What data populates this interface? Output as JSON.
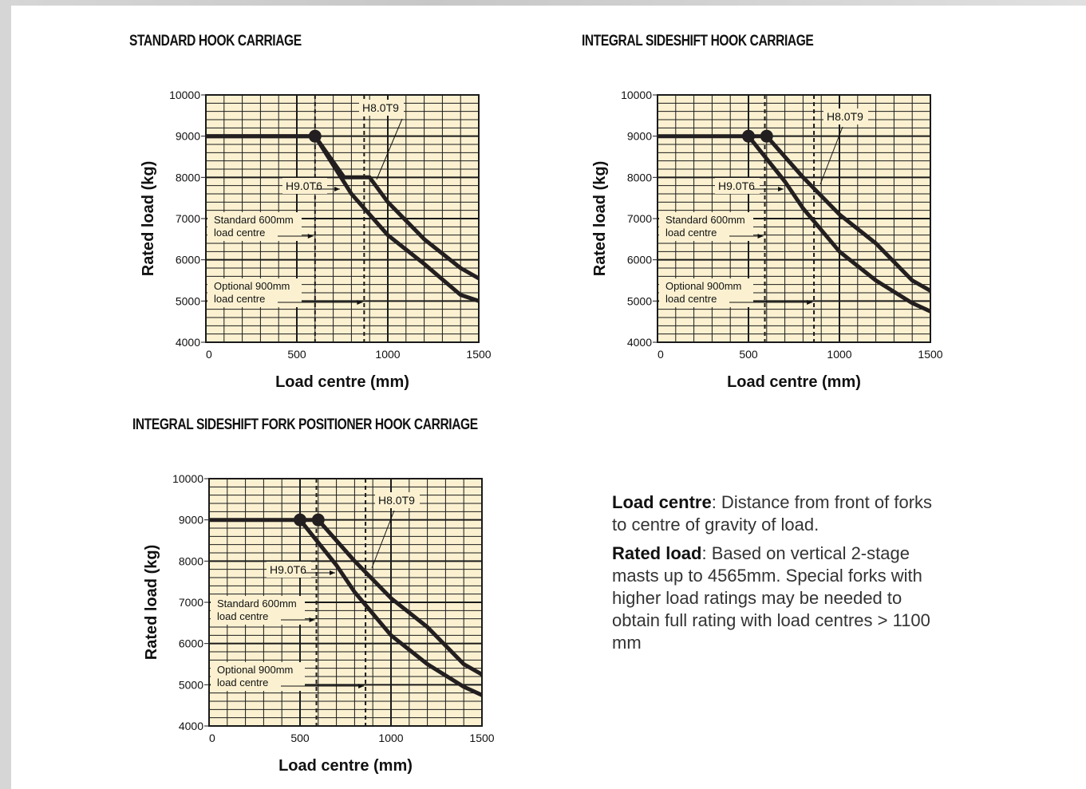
{
  "chart_data": [
    {
      "type": "line",
      "title": "STANDARD HOOK CARRIAGE",
      "xlabel": "Load centre (mm)",
      "ylabel": "Rated load (kg)",
      "xlim": [
        0,
        1500
      ],
      "ylim": [
        4000,
        10000
      ],
      "xticks": [
        0,
        500,
        1000,
        1500
      ],
      "yticks": [
        4000,
        5000,
        6000,
        7000,
        8000,
        9000,
        10000
      ],
      "grid": true,
      "reference_lines": [
        {
          "x": 600,
          "label": "Standard 600mm\nload centre"
        },
        {
          "x": 870,
          "label": "Optional 900mm\nload centre"
        }
      ],
      "series": [
        {
          "name": "H8.0T9",
          "points": [
            [
              0,
              9000
            ],
            [
              600,
              9000
            ],
            [
              760,
              8000
            ],
            [
              900,
              8000
            ],
            [
              1000,
              7400
            ],
            [
              1200,
              6500
            ],
            [
              1400,
              5800
            ],
            [
              1500,
              5550
            ]
          ]
        },
        {
          "name": "H9.0T6",
          "points": [
            [
              0,
              9000
            ],
            [
              600,
              9000
            ],
            [
              800,
              7600
            ],
            [
              1000,
              6600
            ],
            [
              1200,
              5900
            ],
            [
              1400,
              5150
            ],
            [
              1500,
              5000
            ]
          ]
        }
      ],
      "markers": [
        [
          600,
          9000
        ]
      ]
    },
    {
      "type": "line",
      "title": "INTEGRAL SIDESHIFT HOOK CARRIAGE",
      "xlabel": "Load centre (mm)",
      "ylabel": "Rated load (kg)",
      "xlim": [
        0,
        1500
      ],
      "ylim": [
        4000,
        10000
      ],
      "xticks": [
        0,
        500,
        1000,
        1500
      ],
      "yticks": [
        4000,
        5000,
        6000,
        7000,
        8000,
        9000,
        10000
      ],
      "grid": true,
      "reference_lines": [
        {
          "x": 590,
          "label": "Standard 600mm\nload centre"
        },
        {
          "x": 860,
          "label": "Optional 900mm\nload centre"
        }
      ],
      "series": [
        {
          "name": "H8.0T9",
          "points": [
            [
              0,
              9000
            ],
            [
              600,
              9000
            ],
            [
              800,
              8000
            ],
            [
              1000,
              7100
            ],
            [
              1200,
              6400
            ],
            [
              1400,
              5500
            ],
            [
              1500,
              5250
            ]
          ]
        },
        {
          "name": "H9.0T6",
          "points": [
            [
              500,
              9000
            ],
            [
              700,
              7900
            ],
            [
              800,
              7250
            ],
            [
              1000,
              6200
            ],
            [
              1200,
              5500
            ],
            [
              1400,
              4950
            ],
            [
              1500,
              4750
            ]
          ]
        }
      ],
      "markers": [
        [
          500,
          9000
        ],
        [
          600,
          9000
        ]
      ]
    },
    {
      "type": "line",
      "title": "INTEGRAL SIDESHIFT FORK POSITIONER HOOK CARRIAGE",
      "xlabel": "Load centre (mm)",
      "ylabel": "Rated load (kg)",
      "xlim": [
        0,
        1500
      ],
      "ylim": [
        4000,
        10000
      ],
      "xticks": [
        0,
        500,
        1000,
        1500
      ],
      "yticks": [
        4000,
        5000,
        6000,
        7000,
        8000,
        9000,
        10000
      ],
      "grid": true,
      "reference_lines": [
        {
          "x": 590,
          "label": "Standard 600mm\nload centre"
        },
        {
          "x": 860,
          "label": "Optional 900mm\nload centre"
        }
      ],
      "series": [
        {
          "name": "H8.0T9",
          "points": [
            [
              0,
              9000
            ],
            [
              600,
              9000
            ],
            [
              800,
              8000
            ],
            [
              1000,
              7100
            ],
            [
              1200,
              6400
            ],
            [
              1400,
              5500
            ],
            [
              1500,
              5250
            ]
          ]
        },
        {
          "name": "H9.0T6",
          "points": [
            [
              500,
              9000
            ],
            [
              700,
              7900
            ],
            [
              800,
              7250
            ],
            [
              1000,
              6200
            ],
            [
              1200,
              5500
            ],
            [
              1400,
              4950
            ],
            [
              1500,
              4750
            ]
          ]
        }
      ],
      "markers": [
        [
          500,
          9000
        ],
        [
          600,
          9000
        ]
      ]
    }
  ],
  "notes": {
    "load_centre_term": "Load centre",
    "load_centre_text": ": Distance from front of forks to centre of gravity of load.",
    "rated_load_term": "Rated load",
    "rated_load_text": ": Based on vertical 2-stage masts up to 4565mm. Special forks with higher load ratings may be needed to obtain full rating with load centres > 1100 mm"
  },
  "colors": {
    "plot_bg": "#fbf1d1",
    "grid": "#1a1a1a",
    "line": "#231f20"
  }
}
